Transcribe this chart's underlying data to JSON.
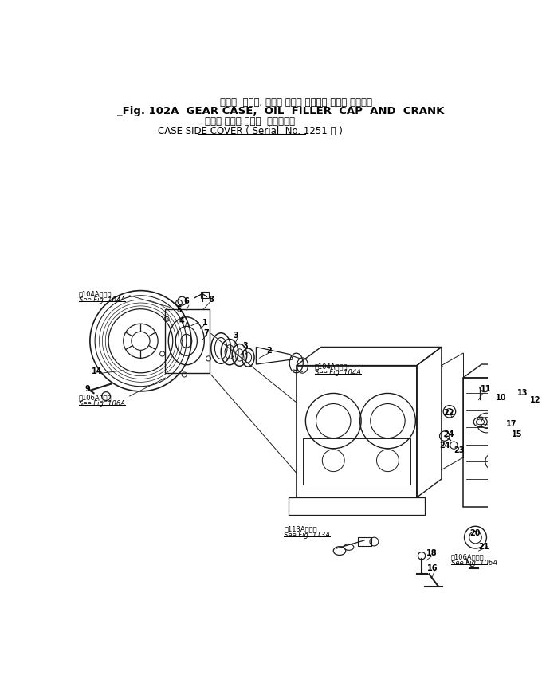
{
  "bg_color": "#ffffff",
  "fig_width": 6.8,
  "fig_height": 8.78,
  "dpi": 100,
  "title1": "ギヤー  ケース, オイル フィラ キャップ および クランク",
  "title2": "_Fig. 102A  GEAR CASE,  OIL  FILLER  CAP  AND  CRANK",
  "title3_ja": "ケース サイド カバー",
  "title3_paren_ja": "適用号機",
  "title4": "CASE SIDE COVER",
  "title4_paren": "Serial  No. 1251 ～",
  "lc": "#1a1a1a"
}
